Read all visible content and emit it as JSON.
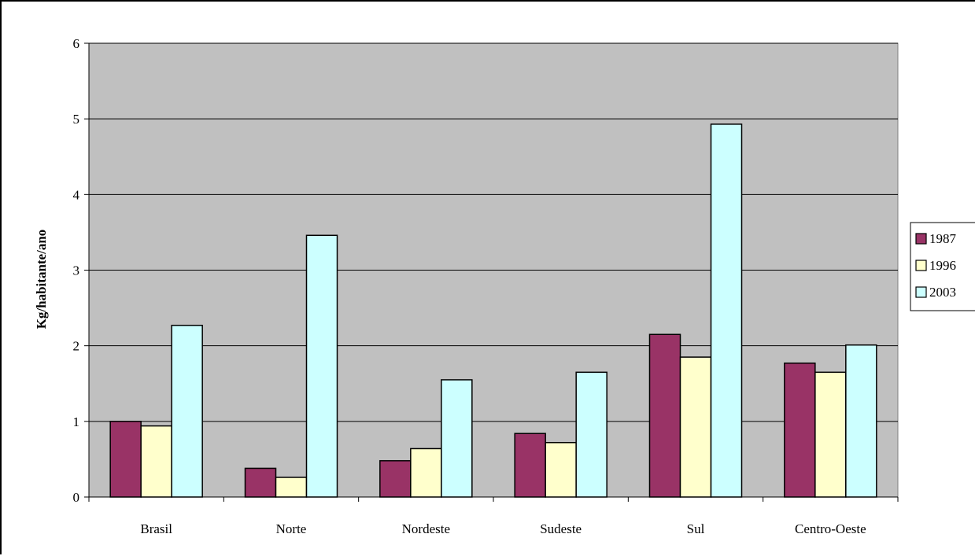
{
  "chart_data": {
    "type": "bar",
    "title": "",
    "xlabel": "",
    "ylabel": "Kg/habitante/ano",
    "ylim": [
      0,
      6
    ],
    "yticks": [
      0,
      1,
      2,
      3,
      4,
      5,
      6
    ],
    "grid": true,
    "legend_position": "right",
    "plot_background": "#c0c0c0",
    "categories": [
      "Brasil",
      "Norte",
      "Nordeste",
      "Sudeste",
      "Sul",
      "Centro-Oeste"
    ],
    "series": [
      {
        "name": "1987",
        "color": "#993366",
        "values": [
          1.0,
          0.38,
          0.48,
          0.84,
          2.15,
          1.77
        ]
      },
      {
        "name": "1996",
        "color": "#ffffcc",
        "values": [
          0.94,
          0.26,
          0.64,
          0.72,
          1.85,
          1.65
        ]
      },
      {
        "name": "2003",
        "color": "#ccffff",
        "values": [
          2.27,
          3.46,
          1.55,
          1.65,
          4.93,
          2.01
        ]
      }
    ]
  }
}
